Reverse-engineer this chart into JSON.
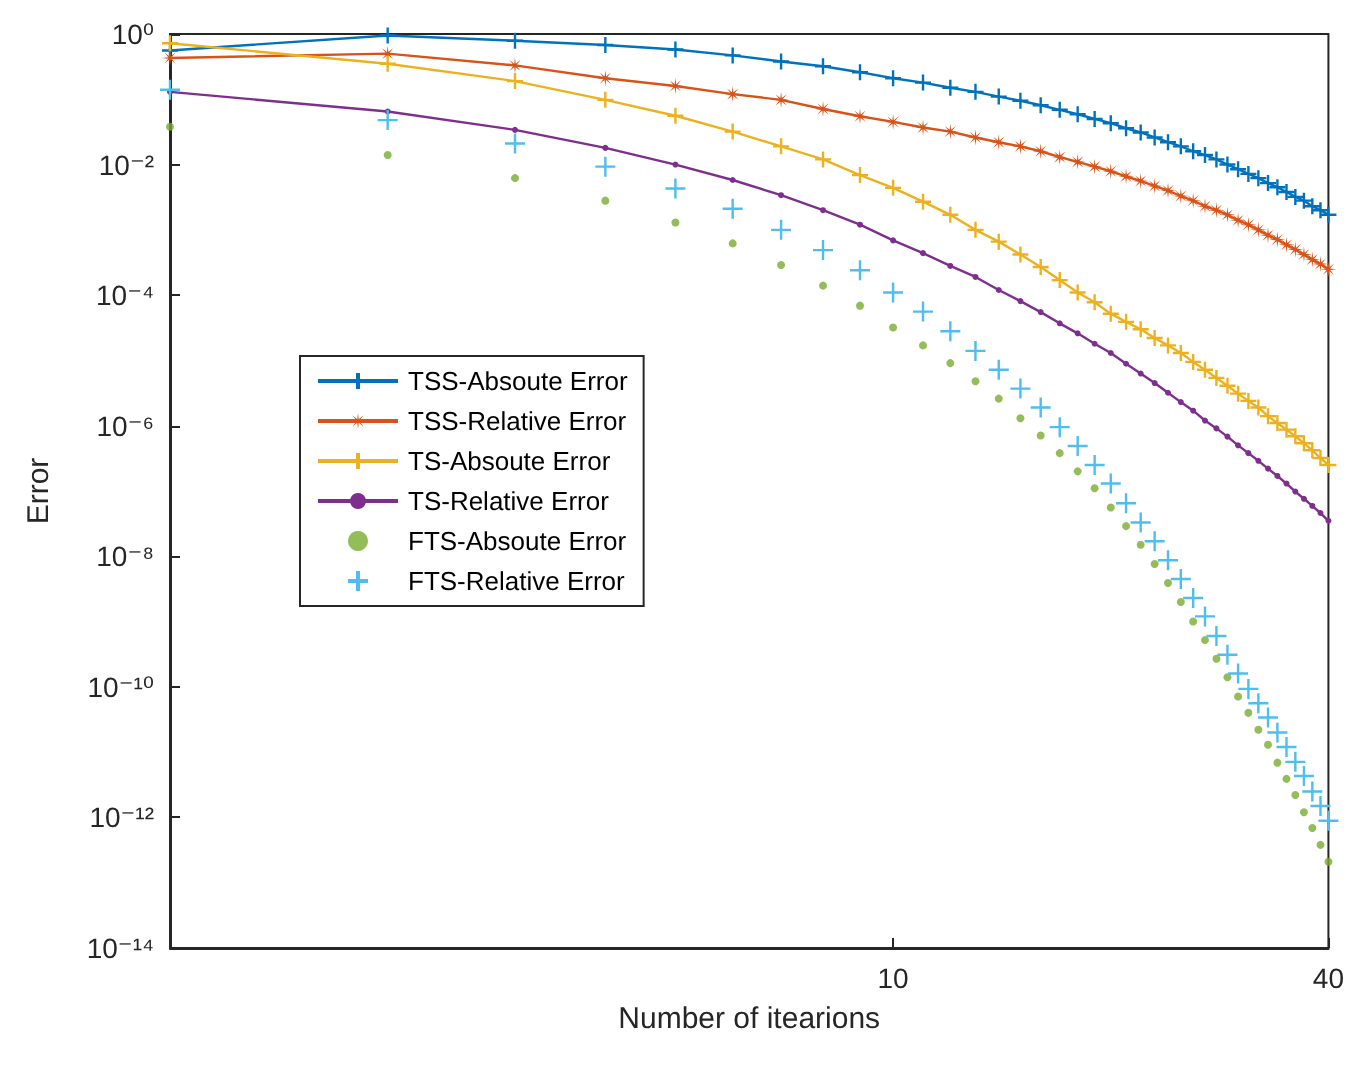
{
  "chart_data": {
    "type": "line",
    "xlabel": "Number of itearions",
    "ylabel": "Error",
    "x": [
      1,
      2,
      3,
      4,
      5,
      6,
      7,
      8,
      9,
      10,
      11,
      12,
      13,
      14,
      15,
      16,
      17,
      18,
      19,
      20,
      21,
      22,
      23,
      24,
      25,
      26,
      27,
      28,
      29,
      30,
      31,
      32,
      33,
      34,
      35,
      36,
      37,
      38,
      39,
      40
    ],
    "log": "xy",
    "xlim": [
      1,
      40
    ],
    "xticks": [
      10,
      40
    ],
    "ylim": [
      1e-14,
      1
    ],
    "yticks": [
      {
        "value": 1,
        "label": "10⁰"
      },
      {
        "value": 0.01,
        "label": "10⁻²"
      },
      {
        "value": 0.0001,
        "label": "10⁻⁴"
      },
      {
        "value": 1e-06,
        "label": "10⁻⁶"
      },
      {
        "value": 1e-08,
        "label": "10⁻⁸"
      },
      {
        "value": 1e-10,
        "label": "10⁻¹⁰"
      },
      {
        "value": 1e-12,
        "label": "10⁻¹²"
      },
      {
        "value": 1e-14,
        "label": "10⁻¹⁴"
      }
    ],
    "grid": false,
    "legend": "left",
    "series": [
      {
        "name": "TSS-Absoute Error",
        "marker": "cross",
        "color": "#0072bd",
        "values": [
          0.56,
          0.95,
          0.79,
          0.68,
          0.58,
          0.47,
          0.38,
          0.32,
          0.26,
          0.21,
          0.18,
          0.15,
          0.13,
          0.11,
          0.095,
          0.081,
          0.069,
          0.059,
          0.05,
          0.043,
          0.036,
          0.031,
          0.026,
          0.022,
          0.019,
          0.016,
          0.014,
          0.012,
          0.01,
          0.0085,
          0.0072,
          0.0062,
          0.0052,
          0.0045,
          0.0038,
          0.0032,
          0.0028,
          0.0023,
          0.002,
          0.0017
        ]
      },
      {
        "name": "TSS-Relative Error",
        "marker": "star",
        "color": "#d95319",
        "values": [
          0.43,
          0.5,
          0.33,
          0.21,
          0.16,
          0.12,
          0.098,
          0.071,
          0.055,
          0.045,
          0.037,
          0.032,
          0.026,
          0.022,
          0.019,
          0.016,
          0.013,
          0.011,
          0.0093,
          0.0079,
          0.0066,
          0.0056,
          0.0047,
          0.004,
          0.0033,
          0.0028,
          0.0023,
          0.002,
          0.0017,
          0.0014,
          0.0012,
          0.001,
          0.00083,
          0.00071,
          0.00059,
          0.0005,
          0.00042,
          0.00035,
          0.0003,
          0.00025
        ]
      },
      {
        "name": "TS-Absoute Error",
        "marker": "cross",
        "color": "#edb120",
        "values": [
          0.72,
          0.35,
          0.19,
          0.098,
          0.056,
          0.032,
          0.019,
          0.012,
          0.0069,
          0.0044,
          0.0027,
          0.0017,
          0.001,
          0.00066,
          0.00042,
          0.00027,
          0.00017,
          0.00011,
          7.8e-05,
          5.2e-05,
          3.9e-05,
          3e-05,
          2.2e-05,
          1.7e-05,
          1.3e-05,
          9.5e-06,
          7.2e-06,
          5.4e-06,
          4.1e-06,
          3.1e-06,
          2.4e-06,
          1.9e-06,
          1.4e-06,
          1.1e-06,
          8.7e-07,
          6.9e-07,
          5.4e-07,
          4.2e-07,
          3.2e-07,
          2.5e-07
        ]
      },
      {
        "name": "TS-Relative Error",
        "marker": "circle",
        "color": "#7e2f8e",
        "values": [
          0.13,
          0.065,
          0.034,
          0.018,
          0.01,
          0.0058,
          0.0034,
          0.002,
          0.0012,
          0.00069,
          0.00044,
          0.00028,
          0.00019,
          0.00012,
          8.1e-05,
          5.5e-05,
          3.7e-05,
          2.6e-05,
          1.8e-05,
          1.3e-05,
          8.9e-06,
          6.3e-06,
          4.5e-06,
          3.2e-06,
          2.3e-06,
          1.7e-06,
          1.2e-06,
          9.1e-07,
          6.8e-07,
          5e-07,
          3.8e-07,
          2.9e-07,
          2.2e-07,
          1.7e-07,
          1.3e-07,
          9.8e-08,
          7.6e-08,
          5.9e-08,
          4.6e-08,
          3.5e-08
        ]
      },
      {
        "name": "FTS-Absoute Error",
        "type": "scatter",
        "marker": "circle",
        "color": "#77ac30",
        "values": [
          0.038,
          0.014,
          0.0062,
          0.0028,
          0.0013,
          0.00062,
          0.00029,
          0.00014,
          6.9e-05,
          3.2e-05,
          1.7e-05,
          9.1e-06,
          4.8e-06,
          2.6e-06,
          1.3e-06,
          7.1e-07,
          3.8e-07,
          2e-07,
          1.1e-07,
          5.6e-08,
          2.9e-08,
          1.5e-08,
          7.6e-09,
          3.9e-09,
          2e-09,
          1e-09,
          5.2e-10,
          2.7e-10,
          1.4e-10,
          7.1e-11,
          4e-11,
          2.2e-11,
          1.3e-11,
          6.9e-12,
          3.9e-12,
          2.2e-12,
          1.2e-12,
          6.9e-13,
          3.8e-13,
          2.1e-13
        ]
      },
      {
        "name": "FTS-Relative Error",
        "type": "scatter",
        "marker": "cross",
        "color": "#4dbeee",
        "values": [
          0.14,
          0.048,
          0.021,
          0.0093,
          0.0043,
          0.0021,
          0.001,
          0.00049,
          0.00024,
          0.00011,
          5.6e-05,
          2.8e-05,
          1.4e-05,
          7.2e-06,
          3.7e-06,
          1.9e-06,
          9.5e-07,
          4.9e-07,
          2.5e-07,
          1.3e-07,
          6.5e-08,
          3.3e-08,
          1.7e-08,
          8.7e-09,
          4.5e-09,
          2.3e-09,
          1.2e-09,
          6e-10,
          3.1e-10,
          1.6e-10,
          9.3e-11,
          5.6e-11,
          3.4e-11,
          2e-11,
          1.2e-11,
          7.1e-12,
          4.3e-12,
          2.5e-12,
          1.5e-12,
          8.9e-13
        ]
      }
    ]
  }
}
